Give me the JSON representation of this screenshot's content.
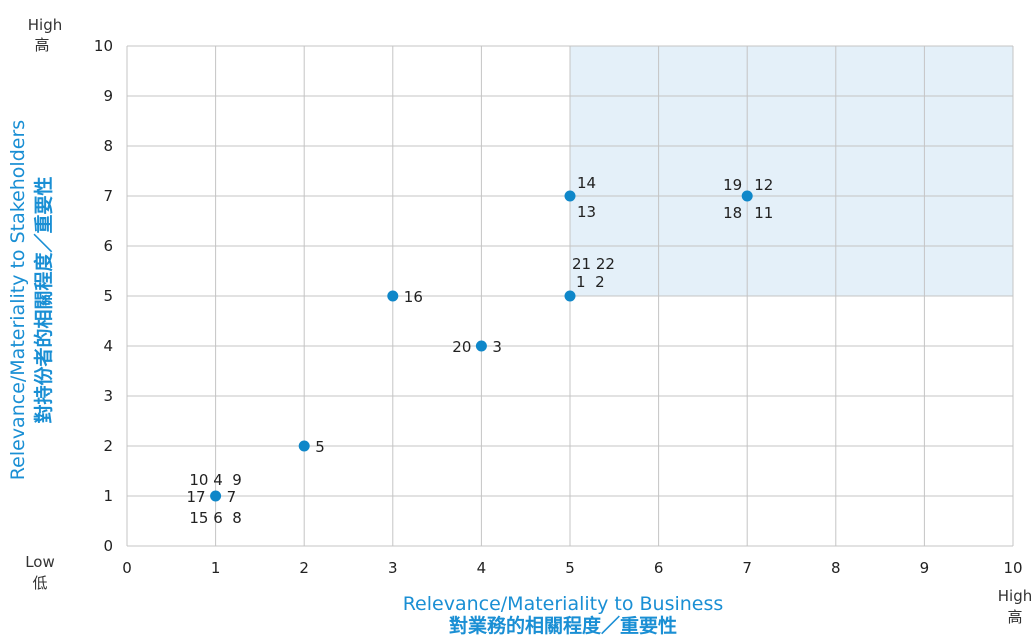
{
  "chart_data": {
    "type": "scatter",
    "xlabel": "Relevance/Materiality to Business",
    "xlabel_cn": "對業務的相關程度／重要性",
    "ylabel": "Relevance/Materiality to Stakeholders",
    "ylabel_cn": "對持份者的相關程度／重要性",
    "xlim": [
      0,
      10
    ],
    "ylim": [
      0,
      10
    ],
    "x_ticks": [
      "0",
      "1",
      "2",
      "3",
      "4",
      "5",
      "6",
      "7",
      "8",
      "9",
      "10"
    ],
    "y_ticks": [
      "0",
      "1",
      "2",
      "3",
      "4",
      "5",
      "6",
      "7",
      "8",
      "9",
      "10"
    ],
    "grid": true,
    "highlight_region": {
      "x": [
        5,
        10
      ],
      "y": [
        5,
        10
      ],
      "color": "#e4f0f9"
    },
    "point_color": "#0f87c9",
    "corner_labels": {
      "y_high": "High",
      "y_high_cn": "高",
      "y_low": "Low",
      "y_low_cn": "低",
      "x_high": "High",
      "x_high_cn": "高"
    },
    "points": [
      {
        "x": 1,
        "y": 1,
        "labels": {
          "top": "10 4  9",
          "left": "17",
          "right": "7",
          "bottom": "15 6  8"
        }
      },
      {
        "x": 2,
        "y": 2,
        "labels": {
          "right": "5"
        }
      },
      {
        "x": 3,
        "y": 5,
        "labels": {
          "right": "16"
        }
      },
      {
        "x": 4,
        "y": 4,
        "labels": {
          "left": "20",
          "right": "3"
        }
      },
      {
        "x": 5,
        "y": 5,
        "labels": {
          "top": "21 22",
          "top2": "1  2"
        }
      },
      {
        "x": 5,
        "y": 7,
        "labels": {
          "top": "14",
          "bottom": "13"
        }
      },
      {
        "x": 7,
        "y": 7,
        "labels": {
          "topleft": "19",
          "topright": "12",
          "bottomleft": "18",
          "bottomright": "11"
        }
      }
    ]
  }
}
